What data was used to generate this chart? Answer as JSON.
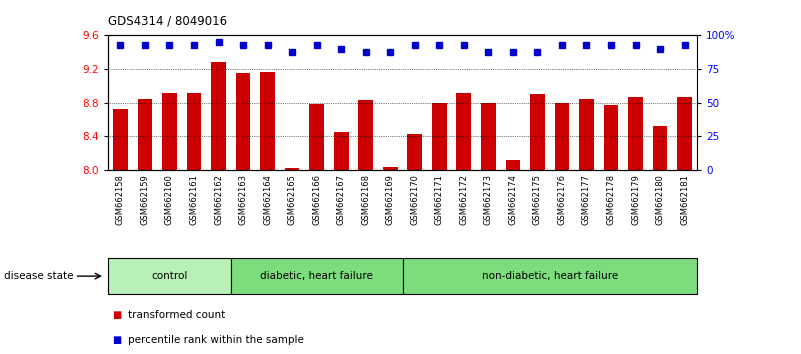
{
  "title": "GDS4314 / 8049016",
  "samples": [
    "GSM662158",
    "GSM662159",
    "GSM662160",
    "GSM662161",
    "GSM662162",
    "GSM662163",
    "GSM662164",
    "GSM662165",
    "GSM662166",
    "GSM662167",
    "GSM662168",
    "GSM662169",
    "GSM662170",
    "GSM662171",
    "GSM662172",
    "GSM662173",
    "GSM662174",
    "GSM662175",
    "GSM662176",
    "GSM662177",
    "GSM662178",
    "GSM662179",
    "GSM662180",
    "GSM662181"
  ],
  "bar_values": [
    8.73,
    8.84,
    8.92,
    8.92,
    9.28,
    9.15,
    9.17,
    8.02,
    8.78,
    8.45,
    8.83,
    8.03,
    8.43,
    8.8,
    8.92,
    8.8,
    8.12,
    8.9,
    8.8,
    8.84,
    8.77,
    8.87,
    8.52,
    8.87
  ],
  "percentile_values": [
    93,
    93,
    93,
    93,
    95,
    93,
    93,
    88,
    93,
    90,
    88,
    88,
    93,
    93,
    93,
    88,
    88,
    88,
    93,
    93,
    93,
    93,
    90,
    93
  ],
  "ylim_left": [
    8.0,
    9.6
  ],
  "ylim_right": [
    0,
    100
  ],
  "yticks_left": [
    8.0,
    8.4,
    8.8,
    9.2,
    9.6
  ],
  "yticks_right": [
    0,
    25,
    50,
    75,
    100
  ],
  "ytick_labels_right": [
    "0",
    "25",
    "50",
    "75",
    "100%"
  ],
  "grid_values": [
    8.4,
    8.8,
    9.2
  ],
  "bar_color": "#cc0000",
  "percentile_color": "#0000cc",
  "bar_width": 0.6,
  "legend_items": [
    {
      "label": "transformed count",
      "color": "#cc0000"
    },
    {
      "label": "percentile rank within the sample",
      "color": "#0000cc"
    }
  ],
  "disease_state_label": "disease state",
  "group_labels": [
    "control",
    "diabetic, heart failure",
    "non-diabetic, heart failure"
  ],
  "group_boundaries": [
    0,
    5,
    12,
    24
  ],
  "group_colors": [
    "#b8f0b8",
    "#7ddd7d",
    "#7ddd7d"
  ],
  "xticklabel_bg": "#d0d0d0"
}
